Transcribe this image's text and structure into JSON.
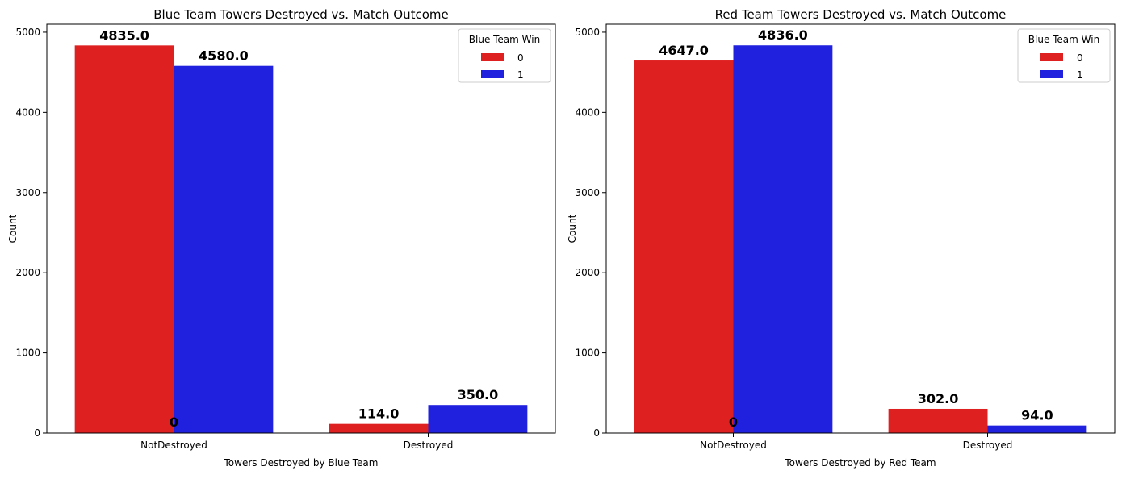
{
  "colors": {
    "hue_0": "#df2020",
    "hue_1": "#2020df",
    "axis": "#000000",
    "legend_border": "#cccccc"
  },
  "chart_data": [
    {
      "type": "bar",
      "title": "Blue Team Towers Destroyed vs. Match Outcome",
      "xlabel": "Towers Destroyed by Blue Team",
      "ylabel": "Count",
      "categories": [
        "NotDestroyed",
        "Destroyed"
      ],
      "ylim": [
        0,
        5100
      ],
      "yticks": [
        0,
        1000,
        2000,
        3000,
        4000,
        5000
      ],
      "grid": false,
      "legend": {
        "title": "Blue Team Win",
        "placement": "top-right",
        "entries": [
          "0",
          "1"
        ]
      },
      "series": [
        {
          "name": "0",
          "values": [
            4835,
            114
          ],
          "labels": [
            "4835.0",
            "114.0"
          ]
        },
        {
          "name": "1",
          "values": [
            4580,
            350
          ],
          "labels": [
            "4580.0",
            "350.0"
          ]
        }
      ],
      "annotation": "0"
    },
    {
      "type": "bar",
      "title": "Red Team Towers Destroyed vs. Match Outcome",
      "xlabel": "Towers Destroyed by Red Team",
      "ylabel": "Count",
      "categories": [
        "NotDestroyed",
        "Destroyed"
      ],
      "ylim": [
        0,
        5100
      ],
      "yticks": [
        0,
        1000,
        2000,
        3000,
        4000,
        5000
      ],
      "grid": false,
      "legend": {
        "title": "Blue Team Win",
        "placement": "top-right",
        "entries": [
          "0",
          "1"
        ]
      },
      "series": [
        {
          "name": "0",
          "values": [
            4647,
            302
          ],
          "labels": [
            "4647.0",
            "302.0"
          ]
        },
        {
          "name": "1",
          "values": [
            4836,
            94
          ],
          "labels": [
            "4836.0",
            "94.0"
          ]
        }
      ],
      "annotation": "0"
    }
  ]
}
